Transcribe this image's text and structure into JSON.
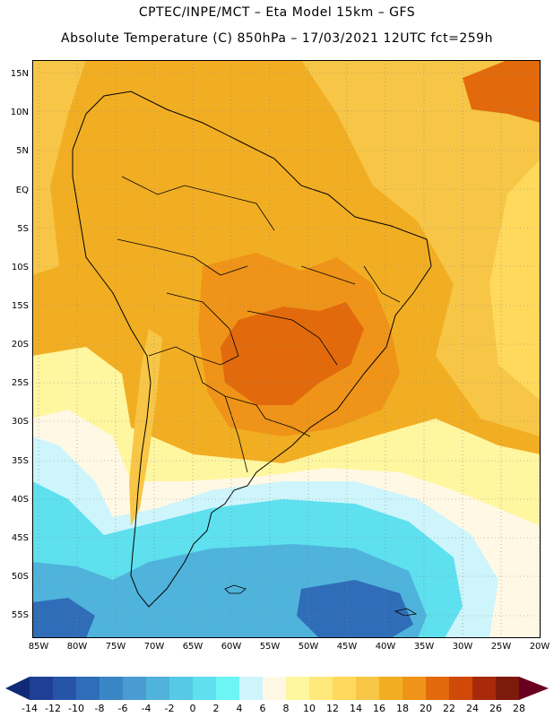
{
  "header": {
    "line1": "CPTEC/INPE/MCT –  Eta Model 15km – GFS",
    "line2": "Absolute Temperature (C) 850hPa – 17/03/2021 12UTC fct=259h"
  },
  "axes": {
    "lat_labels": [
      "15N",
      "10N",
      "5N",
      "EQ",
      "5S",
      "10S",
      "15S",
      "20S",
      "25S",
      "30S",
      "35S",
      "40S",
      "45S",
      "50S",
      "55S"
    ],
    "lon_labels": [
      "85W",
      "80W",
      "75W",
      "70W",
      "65W",
      "60W",
      "55W",
      "50W",
      "45W",
      "40W",
      "35W",
      "30W",
      "25W",
      "20W"
    ]
  },
  "colorbar": {
    "labels": [
      "-14",
      "-12",
      "-10",
      "-8",
      "-6",
      "-4",
      "-2",
      "0",
      "2",
      "4",
      "6",
      "8",
      "10",
      "12",
      "14",
      "16",
      "18",
      "20",
      "22",
      "24",
      "26",
      "28"
    ],
    "colors": [
      "#1f3f94",
      "#2655a8",
      "#2f6db8",
      "#3a85c6",
      "#4a9bd2",
      "#4fb3dc",
      "#55c9e6",
      "#5ee0ee",
      "#6df5f5",
      "#cdf5fb",
      "#fff8e4",
      "#fff6a0",
      "#ffe97a",
      "#ffd95c",
      "#f8c646",
      "#f2ae22",
      "#ef9418",
      "#e26a0c",
      "#cf4a08",
      "#a82a0a",
      "#7e1a0c"
    ],
    "low_arrow_color": "#102a78",
    "high_arrow_color": "#6a0020"
  },
  "map": {
    "colors": {
      "deep_blue": "#2f6db8",
      "blue": "#4fb3dc",
      "cyan": "#5ee0ee",
      "light_cyan": "#cdf5fb",
      "cream": "#fff8e4",
      "pale_yellow": "#fff6a0",
      "yellow": "#ffd95c",
      "gold": "#f8c646",
      "orange": "#f2ae22",
      "dark_orange": "#ef9418",
      "red_orange": "#e26a0c",
      "border": "#000000",
      "grid": "#888888"
    }
  }
}
